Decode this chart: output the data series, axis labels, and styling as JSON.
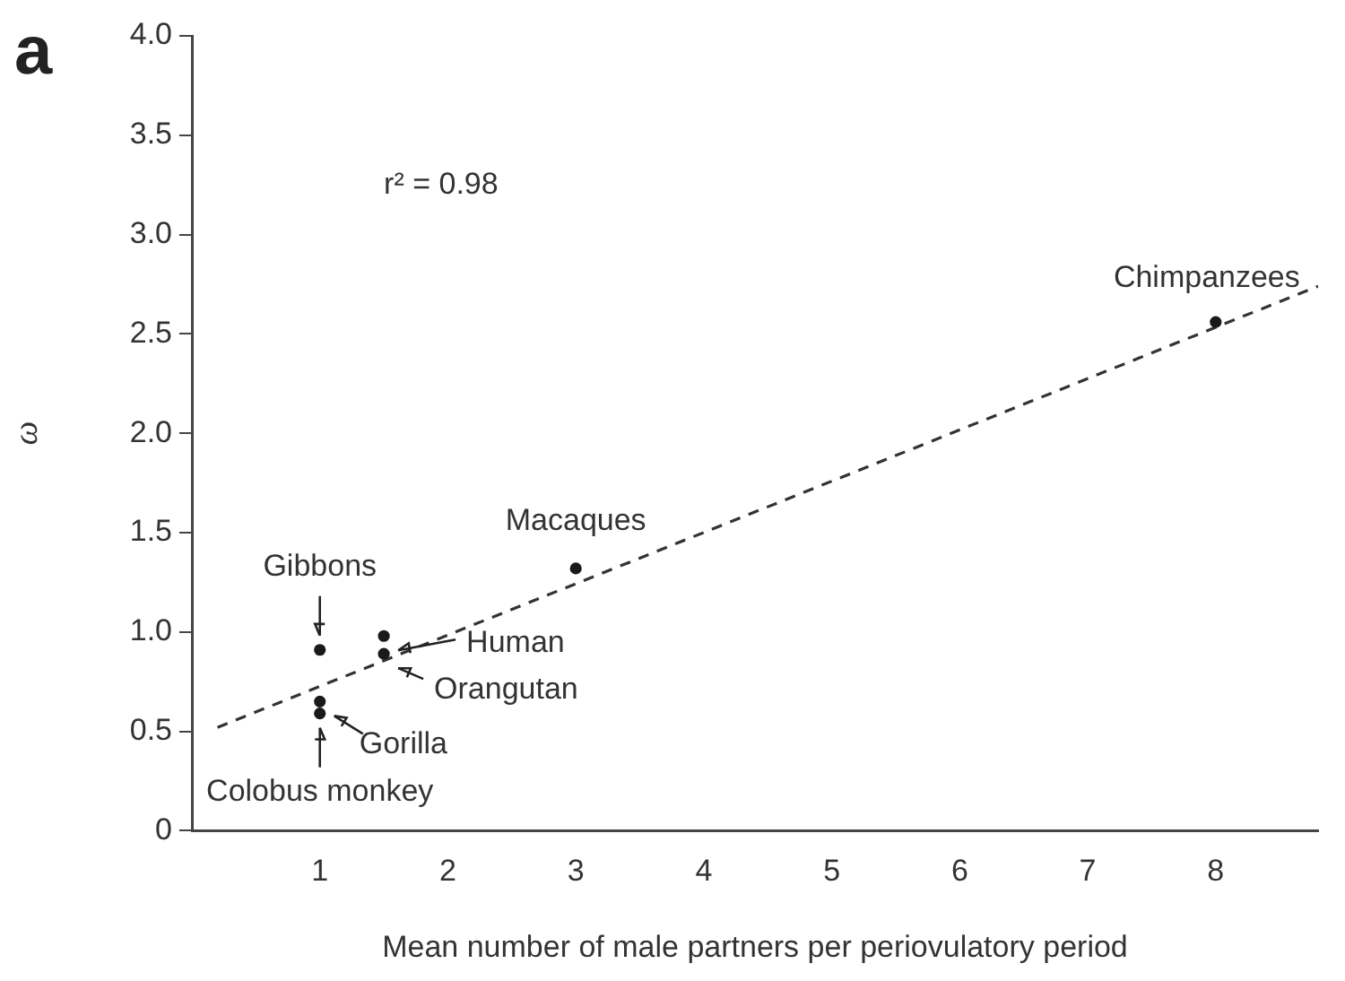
{
  "chart_data": {
    "type": "scatter",
    "xlabel": "Mean number of male partners per periovulatory period",
    "ylabel": "ω",
    "xlim": [
      0,
      8.8
    ],
    "xticks": [
      1,
      2,
      3,
      4,
      5,
      6,
      7,
      8
    ],
    "ylim": [
      0,
      4
    ],
    "yticks": [
      0,
      {
        "value": 0.5,
        "label": "0.5"
      },
      {
        "value": 1,
        "label": "1.0"
      },
      {
        "value": 1.5,
        "label": "1.5"
      },
      {
        "value": 2,
        "label": "2.0"
      },
      {
        "value": 2.5,
        "label": "2.5"
      },
      {
        "value": 3,
        "label": "3.0"
      },
      {
        "value": 3.5,
        "label": "3.5"
      },
      {
        "value": 4,
        "label": "4.0"
      }
    ],
    "grid": false,
    "legend": false,
    "marker": "circle",
    "series": [
      {
        "color": "#1a1a1a",
        "x": [
          8,
          3,
          1,
          1.5,
          1.5,
          1,
          1
        ],
        "values": [
          2.56,
          1.32,
          0.91,
          0.98,
          0.89,
          0.65,
          0.59
        ]
      },
      {
        "type": "line",
        "line_style": "dashed",
        "marker": "none",
        "color": "#333333",
        "x": [
          0.2,
          8.8
        ],
        "values": [
          0.52,
          2.74
        ]
      }
    ],
    "annotations": [
      "a",
      "r² = 0.98",
      {
        "text": "Chimpanzees",
        "x": 8,
        "y": 2.56
      },
      {
        "text": "Macaques",
        "x": 3,
        "y": 1.32
      },
      {
        "text": "Gibbons",
        "x": 1,
        "y": 0.91
      },
      {
        "text": "Human",
        "x": 1.5,
        "y": 0.98
      },
      {
        "text": "Orangutan",
        "x": 1.5,
        "y": 0.89
      },
      {
        "text": "Gorilla",
        "x": 1,
        "y": 0.65
      },
      {
        "text": "Colobus monkey",
        "x": 1,
        "y": 0.59
      }
    ]
  }
}
